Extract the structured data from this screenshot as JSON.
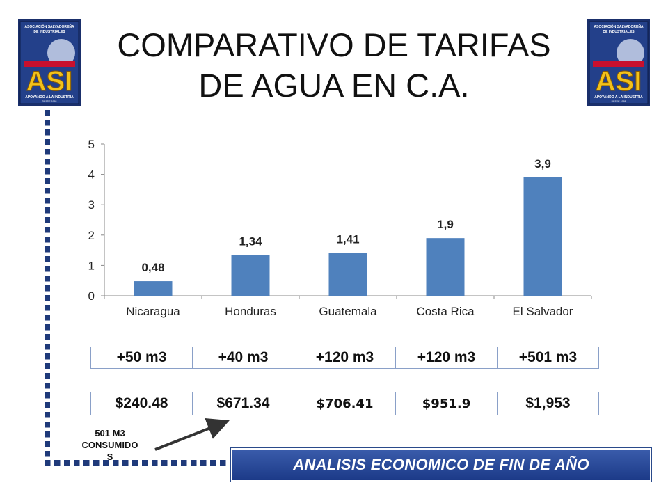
{
  "title": {
    "line1": "COMPARATIVO DE TARIFAS",
    "line2": "DE AGUA EN C.A."
  },
  "logo": {
    "top_text_1": "ASOCIACIÓN SALVADOREÑA",
    "top_text_2": "DE INDUSTRIALES",
    "mark": "ASI",
    "bottom_text": "APOYANDO A LA INDUSTRIA",
    "since": "DESDE 1958"
  },
  "chart_data": {
    "type": "bar",
    "categories": [
      "Nicaragua",
      "Honduras",
      "Guatemala",
      "Costa Rica",
      "El Salvador"
    ],
    "values": [
      0.48,
      1.34,
      1.41,
      1.9,
      3.9
    ],
    "data_labels": [
      "0,48",
      "1,34",
      "1,41",
      "1,9",
      "3,9"
    ],
    "y_ticks": [
      "0",
      "1",
      "2",
      "3",
      "4",
      "5"
    ],
    "ylim": [
      0,
      5
    ],
    "bar_color": "#4f81bd",
    "grid": false,
    "legend": "none"
  },
  "consumption_row": [
    "+50 m3",
    "+40 m3",
    "+120 m3",
    "+120 m3",
    "+501 m3"
  ],
  "cost_row": [
    "$240.48",
    "$671.34",
    "$706.41",
    "$951.9",
    "$1,953"
  ],
  "note": {
    "line1": "501 M3",
    "line2": "CONSUMIDO",
    "line3": "S"
  },
  "banner": "ANALISIS ECONOMICO DE FIN DE AÑO",
  "colors": {
    "accent": "#1f3a7a",
    "banner": "#2a4a9a"
  }
}
